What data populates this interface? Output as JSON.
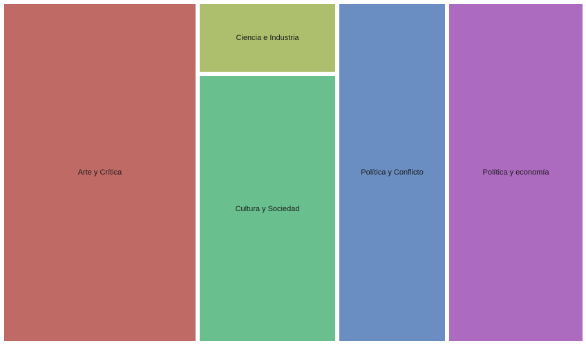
{
  "chart_data": {
    "type": "treemap",
    "items": [
      {
        "label": "Arte y Crítica",
        "value": 28,
        "color": "#c06a66"
      },
      {
        "label": "Ciencia e Industria",
        "value": 4,
        "color": "#adbf6c"
      },
      {
        "label": "Cultura y Sociedad",
        "value": 16,
        "color": "#69bf8d"
      },
      {
        "label": "Política y Conflicto",
        "value": 15,
        "color": "#6b8ec2"
      },
      {
        "label": "Política y economía",
        "value": 19,
        "color": "#ad6bc0"
      }
    ]
  }
}
